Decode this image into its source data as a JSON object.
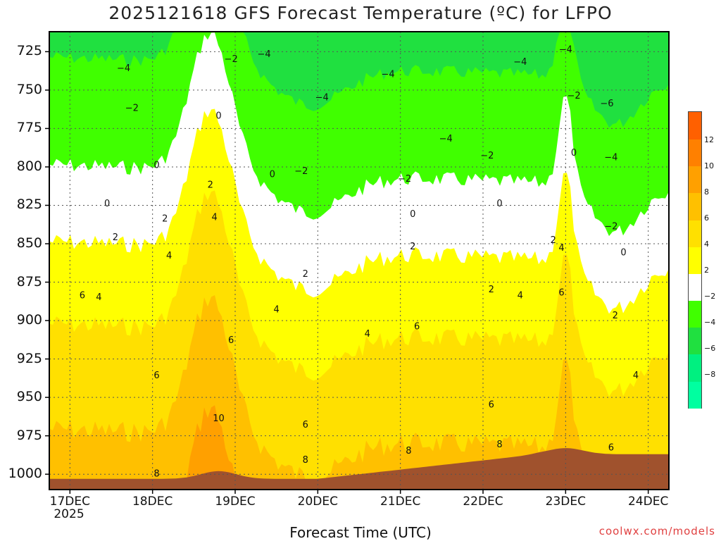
{
  "chart_data": {
    "type": "filled-contour",
    "title": "2025121618 GFS Forecast Temperature (ºC) for LFPO",
    "xlabel": "Forecast Time (UTC)",
    "credit": "coolwx.com/models",
    "x_ticks": [
      "17DEC",
      "18DEC",
      "19DEC",
      "20DEC",
      "21DEC",
      "22DEC",
      "23DEC",
      "24DEC"
    ],
    "x_year": "2025",
    "y_ticks": [
      "725",
      "750",
      "775",
      "800",
      "825",
      "850",
      "875",
      "900",
      "925",
      "950",
      "975",
      "1000"
    ],
    "ylim": [
      1010,
      712
    ],
    "colorbar": {
      "levels": [
        -10,
        -8,
        -6,
        -4,
        -2,
        2,
        4,
        6,
        8,
        10,
        12,
        14
      ],
      "labels": [
        "12",
        "10",
        "8",
        "6",
        "4",
        "2",
        "−2",
        "−4",
        "−6",
        "−8"
      ],
      "colors": [
        "#00ffa0",
        "#00f080",
        "#20e040",
        "#40ff00",
        "#ffffff",
        "#ffff00",
        "#ffe000",
        "#ffc000",
        "#ffa000",
        "#ff8000",
        "#ff6000"
      ]
    },
    "contour_labels": [
      {
        "text": "−4",
        "t": 17.65,
        "p": 736
      },
      {
        "text": "−2",
        "t": 17.75,
        "p": 762
      },
      {
        "text": "−2",
        "t": 18.95,
        "p": 730
      },
      {
        "text": "−4",
        "t": 19.35,
        "p": 727
      },
      {
        "text": "−4",
        "t": 20.05,
        "p": 755
      },
      {
        "text": "−4",
        "t": 20.85,
        "p": 740
      },
      {
        "text": "−4",
        "t": 22.45,
        "p": 732
      },
      {
        "text": "−4",
        "t": 23.0,
        "p": 724
      },
      {
        "text": "−6",
        "t": 23.5,
        "p": 759
      },
      {
        "text": "−4",
        "t": 23.55,
        "p": 794
      },
      {
        "text": "−2",
        "t": 19.8,
        "p": 803
      },
      {
        "text": "−2",
        "t": 21.05,
        "p": 808
      },
      {
        "text": "−2",
        "t": 22.05,
        "p": 793
      },
      {
        "text": "−4",
        "t": 21.55,
        "p": 782
      },
      {
        "text": "−2",
        "t": 23.1,
        "p": 754
      },
      {
        "text": "−2",
        "t": 23.55,
        "p": 839
      },
      {
        "text": "0",
        "t": 18.05,
        "p": 799
      },
      {
        "text": "0",
        "t": 18.8,
        "p": 767
      },
      {
        "text": "0",
        "t": 19.45,
        "p": 805
      },
      {
        "text": "0",
        "t": 17.45,
        "p": 824
      },
      {
        "text": "0",
        "t": 21.15,
        "p": 831
      },
      {
        "text": "0",
        "t": 22.2,
        "p": 824
      },
      {
        "text": "0",
        "t": 23.1,
        "p": 791
      },
      {
        "text": "0",
        "t": 23.7,
        "p": 856
      },
      {
        "text": "2",
        "t": 17.55,
        "p": 846
      },
      {
        "text": "2",
        "t": 18.15,
        "p": 834
      },
      {
        "text": "2",
        "t": 18.7,
        "p": 812
      },
      {
        "text": "2",
        "t": 19.85,
        "p": 870
      },
      {
        "text": "2",
        "t": 21.15,
        "p": 852
      },
      {
        "text": "2",
        "t": 22.1,
        "p": 880
      },
      {
        "text": "2",
        "t": 22.85,
        "p": 848
      },
      {
        "text": "2",
        "t": 23.6,
        "p": 897
      },
      {
        "text": "4",
        "t": 17.35,
        "p": 885
      },
      {
        "text": "4",
        "t": 18.2,
        "p": 858
      },
      {
        "text": "4",
        "t": 18.75,
        "p": 833
      },
      {
        "text": "4",
        "t": 19.5,
        "p": 893
      },
      {
        "text": "4",
        "t": 20.6,
        "p": 909
      },
      {
        "text": "4",
        "t": 22.45,
        "p": 884
      },
      {
        "text": "4",
        "t": 22.95,
        "p": 853
      },
      {
        "text": "4",
        "t": 23.85,
        "p": 936
      },
      {
        "text": "6",
        "t": 17.15,
        "p": 884
      },
      {
        "text": "6",
        "t": 18.05,
        "p": 936
      },
      {
        "text": "6",
        "t": 18.95,
        "p": 913
      },
      {
        "text": "6",
        "t": 19.85,
        "p": 968
      },
      {
        "text": "6",
        "t": 21.2,
        "p": 904
      },
      {
        "text": "6",
        "t": 22.1,
        "p": 955
      },
      {
        "text": "6",
        "t": 22.95,
        "p": 882
      },
      {
        "text": "6",
        "t": 23.55,
        "p": 983
      },
      {
        "text": "8",
        "t": 18.05,
        "p": 1000
      },
      {
        "text": "8",
        "t": 19.85,
        "p": 991
      },
      {
        "text": "8",
        "t": 21.1,
        "p": 985
      },
      {
        "text": "8",
        "t": 22.2,
        "p": 981
      },
      {
        "text": "10",
        "t": 18.8,
        "p": 964
      }
    ]
  }
}
